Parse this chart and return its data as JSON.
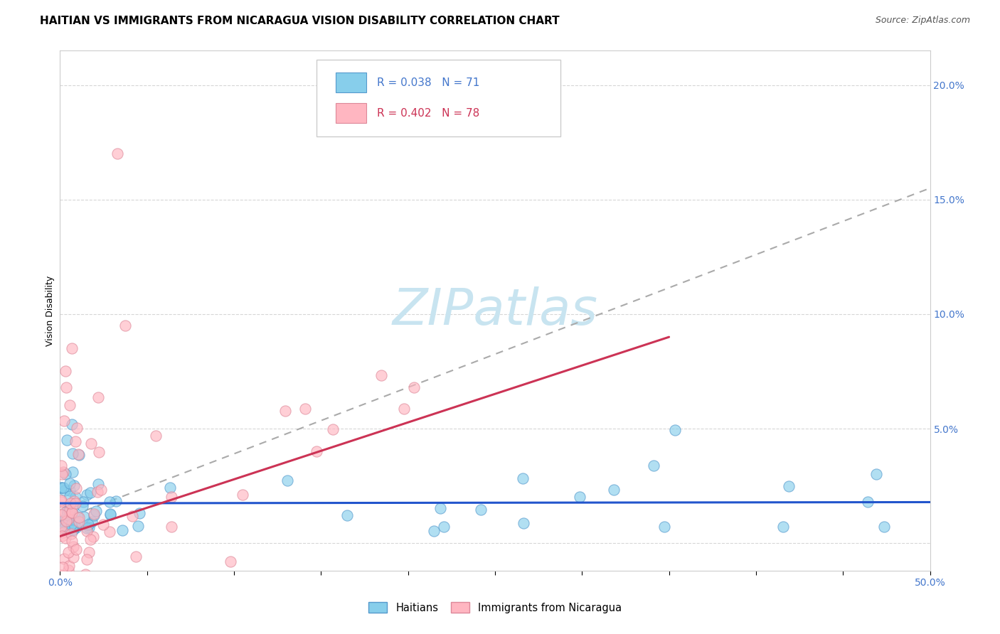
{
  "title": "HAITIAN VS IMMIGRANTS FROM NICARAGUA VISION DISABILITY CORRELATION CHART",
  "source": "Source: ZipAtlas.com",
  "ylabel": "Vision Disability",
  "watermark": "ZIPatlas",
  "xlim": [
    0.0,
    0.5
  ],
  "ylim": [
    -0.012,
    0.215
  ],
  "yticks": [
    0.0,
    0.05,
    0.1,
    0.15,
    0.2
  ],
  "ytick_labels": [
    "",
    "5.0%",
    "10.0%",
    "15.0%",
    "20.0%"
  ],
  "blue_line_color": "#2255CC",
  "pink_line_color": "#CC3355",
  "scatter_blue": "#87CEEB",
  "scatter_blue_edge": "#5599CC",
  "scatter_pink": "#FFB6C1",
  "scatter_pink_edge": "#DD8899",
  "grid_color": "#CCCCCC",
  "watermark_color": "#C8E4F0",
  "title_fontsize": 11,
  "source_fontsize": 9,
  "axis_label_fontsize": 9,
  "tick_fontsize": 10,
  "legend_fontsize": 11,
  "watermark_fontsize": 52
}
